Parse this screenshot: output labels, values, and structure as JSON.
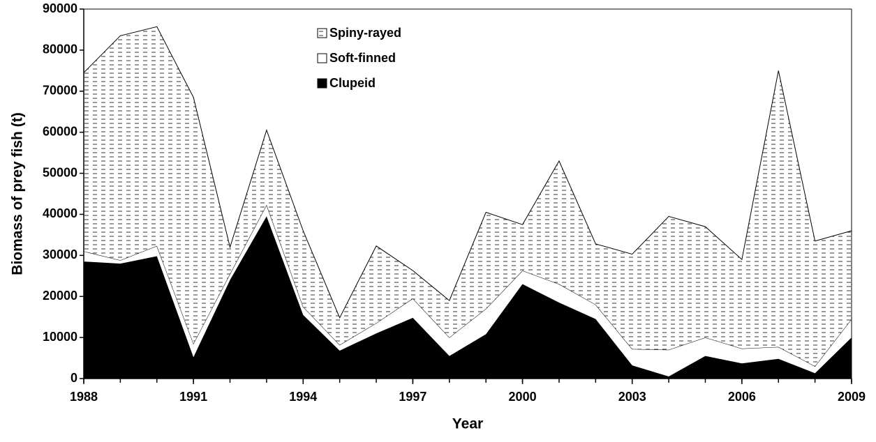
{
  "chart_data": {
    "type": "stacked_area",
    "x_label": "Year",
    "y_label": "Biomass of prey fish (t)",
    "x": [
      1988,
      1989,
      1990,
      1991,
      1992,
      1993,
      1994,
      1995,
      1996,
      1997,
      1998,
      1999,
      2000,
      2001,
      2002,
      2003,
      2004,
      2005,
      2006,
      2007,
      2008,
      2009
    ],
    "series": [
      {
        "name": "Clupeid",
        "color": "#000000",
        "values": [
          28500,
          28000,
          29800,
          5200,
          24000,
          39500,
          15500,
          6800,
          11000,
          14800,
          5500,
          10800,
          23000,
          18500,
          14500,
          3200,
          500,
          5500,
          3700,
          4800,
          1300,
          10000
        ]
      },
      {
        "name": "Soft-finned",
        "color": "#ffffff",
        "values": [
          2500,
          800,
          2500,
          3300,
          1500,
          2800,
          2000,
          1400,
          2500,
          4700,
          4500,
          6200,
          3300,
          4500,
          3500,
          4000,
          6500,
          4500,
          3600,
          2900,
          1700,
          4500
        ]
      },
      {
        "name": "Spiny-rayed",
        "color": "#ffffff",
        "pattern": "dashes",
        "values": [
          43500,
          54700,
          53400,
          60000,
          6500,
          18200,
          18500,
          6600,
          18800,
          6800,
          9000,
          23500,
          11200,
          30000,
          14800,
          23100,
          32500,
          27000,
          21700,
          67300,
          30500,
          21500
        ]
      }
    ],
    "xlim": [
      1988,
      2009
    ],
    "xticks": [
      1988,
      1991,
      1994,
      1997,
      2000,
      2003,
      2006,
      2009
    ],
    "ylim": [
      0,
      90000
    ],
    "yticks": [
      0,
      10000,
      20000,
      30000,
      40000,
      50000,
      60000,
      70000,
      80000,
      90000
    ],
    "legend": "upper center"
  }
}
